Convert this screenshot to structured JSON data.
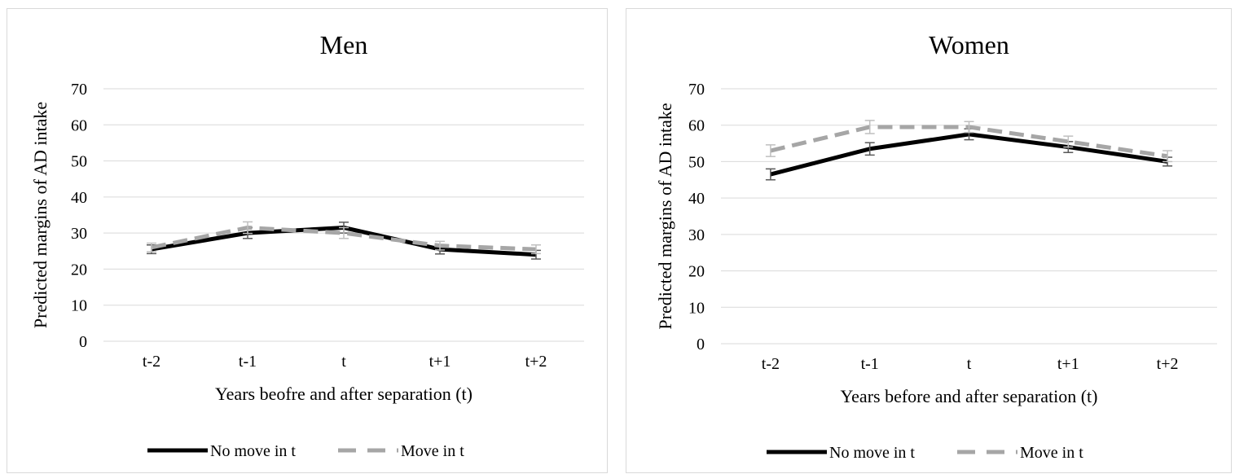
{
  "chart_data": [
    {
      "type": "line",
      "title": "Men",
      "xlabel": "Years beofre and after separation (t)",
      "ylabel": "Predicted margins of AD intake",
      "categories": [
        "t-2",
        "t-1",
        "t",
        "t+1",
        "t+2"
      ],
      "ylim": [
        0,
        70
      ],
      "yticks": [
        0,
        10,
        20,
        30,
        40,
        50,
        60,
        70
      ],
      "grid": true,
      "legend": "bottom",
      "series": [
        {
          "name": "No move in t",
          "values": [
            25.5,
            30,
            31.5,
            25.5,
            24
          ],
          "error": [
            1.2,
            1.5,
            1.5,
            1.3,
            1.2
          ],
          "color": "#000000",
          "dash": "solid"
        },
        {
          "name": "Move in t",
          "values": [
            26,
            31.5,
            30,
            26.5,
            25.5
          ],
          "error": [
            1.2,
            1.6,
            1.5,
            1.2,
            1.2
          ],
          "color": "#a6a6a6",
          "dash": "dashed"
        }
      ]
    },
    {
      "type": "line",
      "title": "Women",
      "xlabel": "Years before and after separation (t)",
      "ylabel": "Predicted margins of AD intake",
      "categories": [
        "t-2",
        "t-1",
        "t",
        "t+1",
        "t+2"
      ],
      "ylim": [
        0,
        70
      ],
      "yticks": [
        0,
        10,
        20,
        30,
        40,
        50,
        60,
        70
      ],
      "grid": true,
      "legend": "bottom",
      "series": [
        {
          "name": "No move in t",
          "values": [
            46.5,
            53.5,
            57.5,
            54,
            50
          ],
          "error": [
            1.5,
            1.7,
            1.5,
            1.5,
            1.2
          ],
          "color": "#000000",
          "dash": "solid"
        },
        {
          "name": "Move in t",
          "values": [
            53,
            59.5,
            59.5,
            55.5,
            51.5
          ],
          "error": [
            1.6,
            1.8,
            1.5,
            1.5,
            1.5
          ],
          "color": "#a6a6a6",
          "dash": "dashed"
        }
      ]
    }
  ]
}
